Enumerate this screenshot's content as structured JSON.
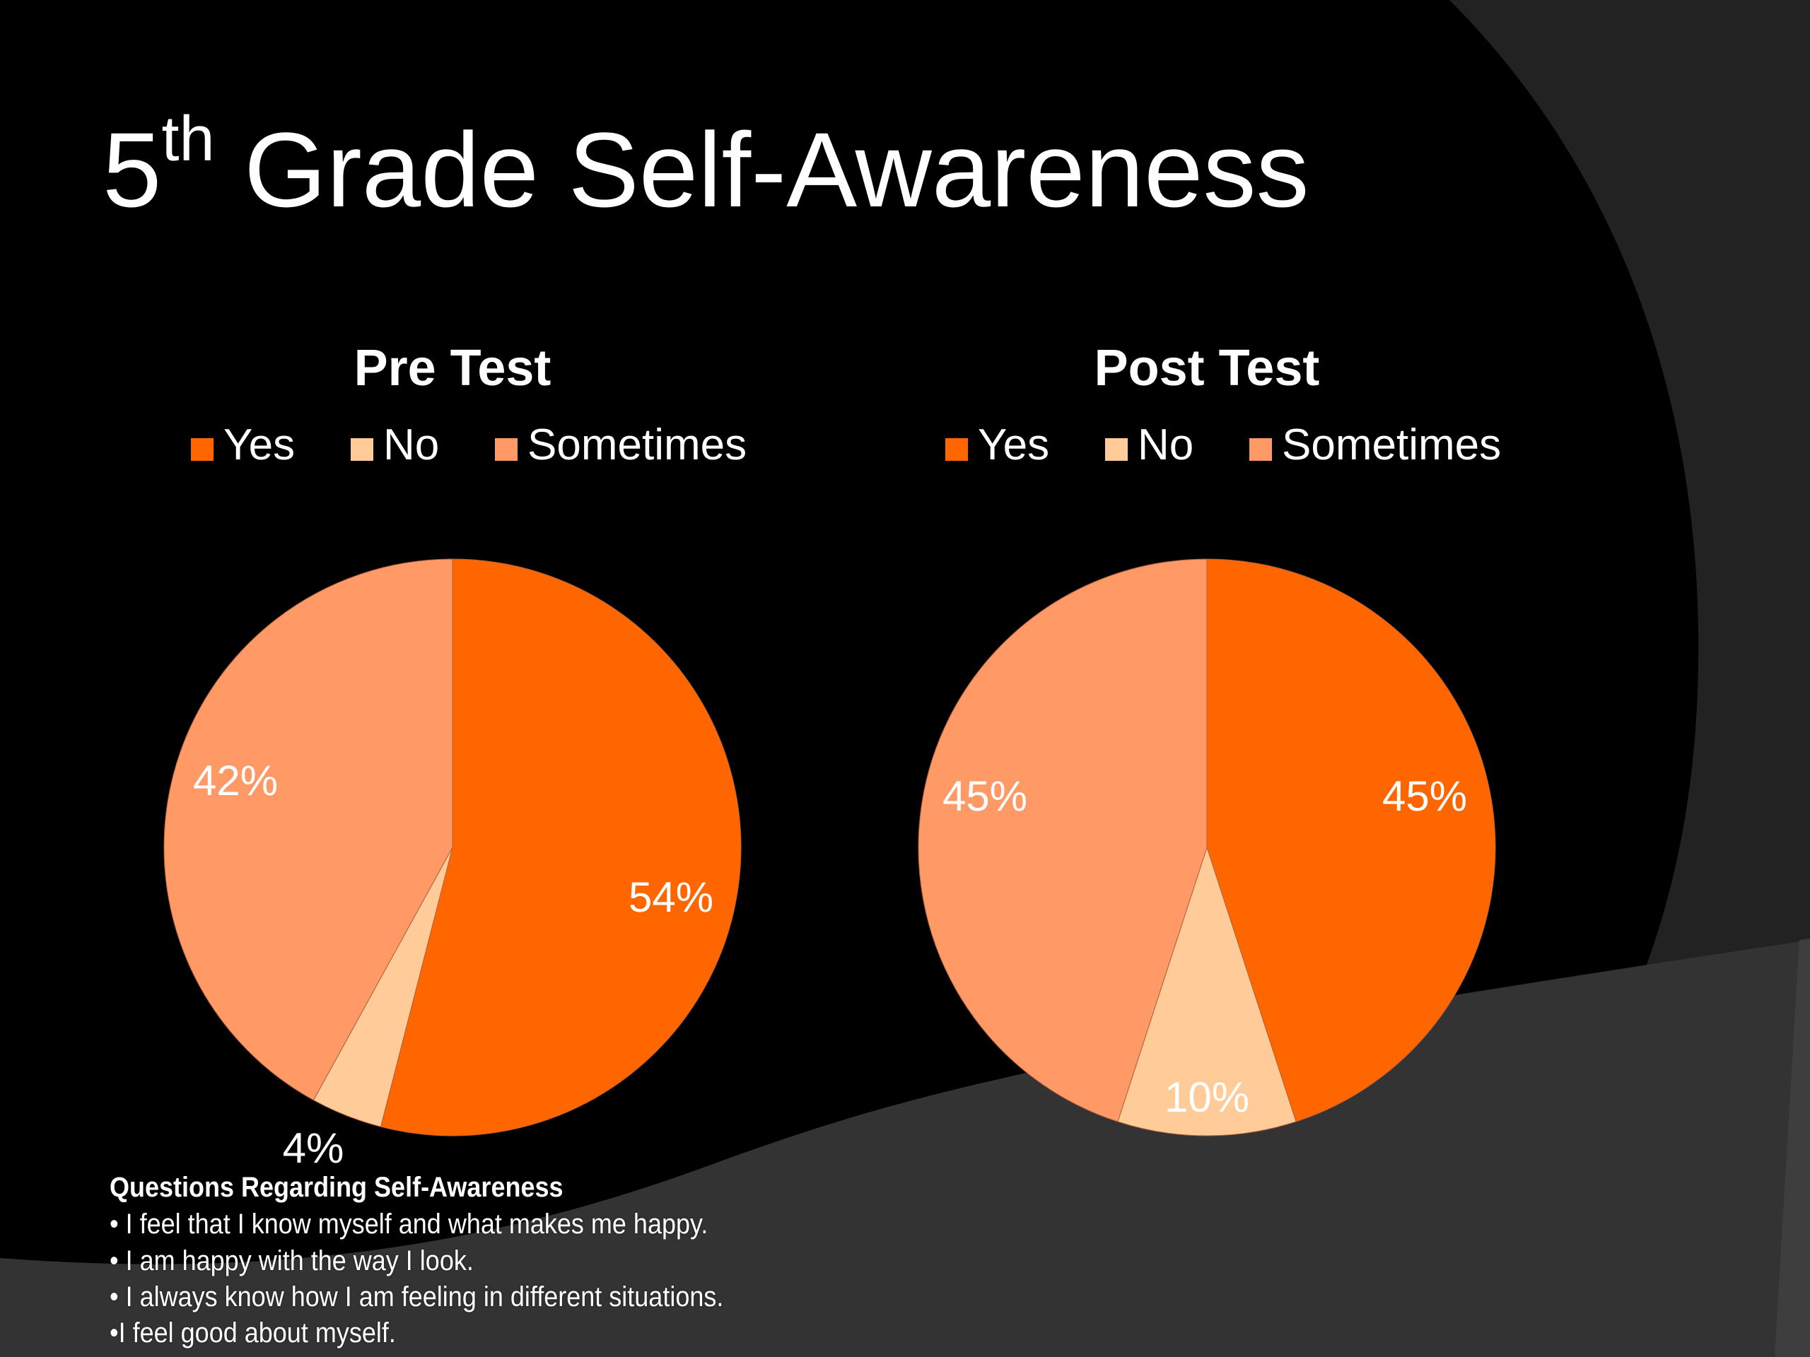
{
  "slide": {
    "title_main": "5",
    "title_sup": "th",
    "title_rest": " Grade Self-Awareness"
  },
  "questions": {
    "heading": "Questions Regarding Self-Awareness",
    "items": [
      "• I feel that I know myself and what makes me happy.",
      "• I am happy with the way I look.",
      "• I always know how I am feeling in different situations.",
      "•I feel good about myself."
    ]
  },
  "chart_data": [
    {
      "type": "pie",
      "title": "Pre Test",
      "categories": [
        "Yes",
        "No",
        "Sometimes"
      ],
      "values": [
        54,
        4,
        42
      ],
      "labels": [
        "54%",
        "4%",
        "42%"
      ],
      "colors": [
        "#FF6600",
        "#FFCC99",
        "#FF9966"
      ],
      "legend": "top"
    },
    {
      "type": "pie",
      "title": "Post Test",
      "categories": [
        "Yes",
        "No",
        "Sometimes"
      ],
      "values": [
        45,
        10,
        45
      ],
      "labels": [
        "45%",
        "10%",
        "45%"
      ],
      "colors": [
        "#FF6600",
        "#FFCC99",
        "#FF9966"
      ],
      "legend": "top"
    }
  ]
}
